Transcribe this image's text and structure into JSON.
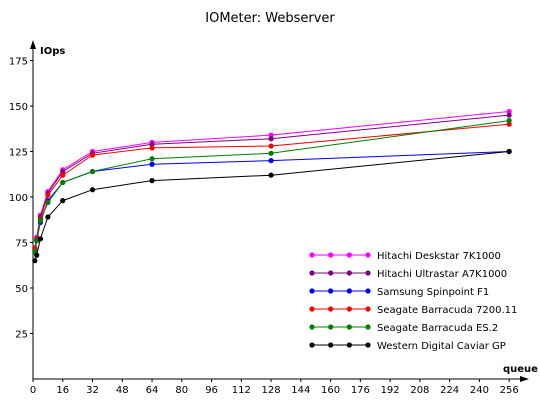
{
  "chart_data": {
    "type": "line",
    "title": "IOMeter: Webserver",
    "ylabel": "IOps",
    "xlabel": "queue",
    "xlim": [
      0,
      264
    ],
    "ylim": [
      0,
      175
    ],
    "x_ticks": [
      0,
      16,
      32,
      48,
      64,
      80,
      96,
      112,
      128,
      144,
      160,
      176,
      192,
      208,
      224,
      240,
      256
    ],
    "y_ticks": [
      25,
      50,
      75,
      100,
      125,
      150,
      175
    ],
    "grid": false,
    "legend_position": "bottom-right",
    "x": [
      1,
      2,
      4,
      8,
      16,
      32,
      64,
      128,
      256
    ],
    "series": [
      {
        "name": "Hitachi Deskstar 7K1000",
        "color": "#ff00ff",
        "values": [
          72,
          78,
          90,
          103,
          115,
          125,
          130,
          134,
          147
        ]
      },
      {
        "name": "Hitachi Ultrastar A7K1000",
        "color": "#800080",
        "values": [
          71,
          77,
          89,
          102,
          114,
          124,
          129,
          132,
          145
        ]
      },
      {
        "name": "Samsung Spinpoint F1",
        "color": "#0000ff",
        "values": [
          70,
          76,
          86,
          98,
          108,
          114,
          118,
          120,
          125
        ]
      },
      {
        "name": "Seagate Barracuda 7200.11",
        "color": "#ff0000",
        "values": [
          72,
          77,
          88,
          101,
          112,
          123,
          127,
          128,
          140
        ]
      },
      {
        "name": "Seagate Barracuda ES.2",
        "color": "#008000",
        "values": [
          70,
          76,
          87,
          97,
          108,
          114,
          121,
          124,
          142
        ]
      },
      {
        "name": "Western Digital Caviar GP",
        "color": "#000000",
        "values": [
          65,
          68,
          77,
          89,
          98,
          104,
          109,
          112,
          125
        ]
      }
    ]
  }
}
